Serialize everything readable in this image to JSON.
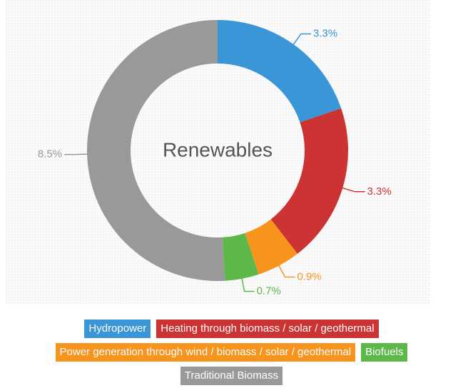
{
  "chart_data": {
    "type": "donut",
    "title": "Renewables",
    "categories": [
      "Hydropower",
      "Heating through biomass / solar / geothermal",
      "Power generation through wind / biomass / solar / geothermal",
      "Biofuels",
      "Traditional Biomass"
    ],
    "values": [
      3.3,
      3.3,
      0.9,
      0.7,
      8.5
    ],
    "value_labels": [
      "3.3%",
      "3.3%",
      "0.9%",
      "0.7%",
      "8.5%"
    ],
    "colors": [
      "#3a96d6",
      "#cc3333",
      "#f7941d",
      "#5cb848",
      "#999999"
    ],
    "legend": "bottom"
  }
}
